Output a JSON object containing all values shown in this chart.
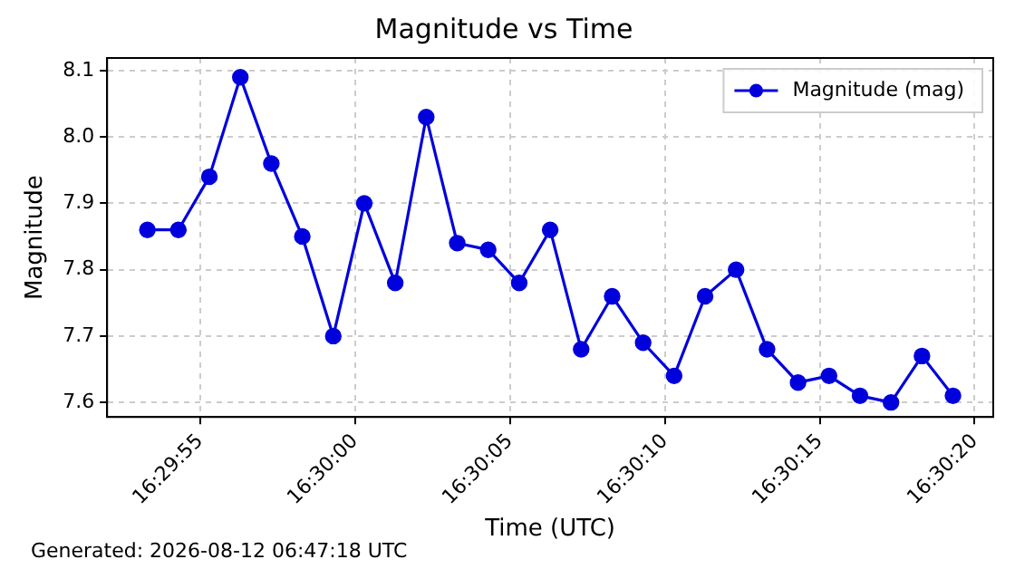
{
  "chart_data": {
    "type": "line",
    "title": "Magnitude vs Time",
    "xlabel": "Time (UTC)",
    "ylabel": "Magnitude",
    "annotations": [
      "Generated: 2026-08-12 06:47:18 UTC"
    ],
    "x": [
      "2026-08-12T16:29:53.3",
      "2026-08-12T16:29:54.3",
      "2026-08-12T16:29:55.3",
      "2026-08-12T16:29:56.3",
      "2026-08-12T16:29:57.3",
      "2026-08-12T16:29:58.3",
      "2026-08-12T16:29:59.3",
      "2026-08-12T16:30:00.3",
      "2026-08-12T16:30:01.3",
      "2026-08-12T16:30:02.3",
      "2026-08-12T16:30:03.3",
      "2026-08-12T16:30:04.3",
      "2026-08-12T16:30:05.3",
      "2026-08-12T16:30:06.3",
      "2026-08-12T16:30:07.3",
      "2026-08-12T16:30:08.3",
      "2026-08-12T16:30:09.3",
      "2026-08-12T16:30:10.3",
      "2026-08-12T16:30:11.3",
      "2026-08-12T16:30:12.3",
      "2026-08-12T16:30:13.3",
      "2026-08-12T16:30:14.3",
      "2026-08-12T16:30:15.3",
      "2026-08-12T16:30:16.3",
      "2026-08-12T16:30:17.3",
      "2026-08-12T16:30:18.3",
      "2026-08-12T16:30:19.3"
    ],
    "series": [
      {
        "name": "Magnitude (mag)",
        "color": "#0000dd",
        "values": [
          7.86,
          7.86,
          7.94,
          8.09,
          7.96,
          7.85,
          7.7,
          7.9,
          7.78,
          8.03,
          7.84,
          7.83,
          7.78,
          7.86,
          7.68,
          7.76,
          7.69,
          7.64,
          7.76,
          7.8,
          7.68,
          7.63,
          7.64,
          7.61,
          7.6,
          7.67,
          7.61
        ]
      }
    ],
    "xlim": [
      "2026-08-12T16:29:52.0",
      "2026-08-12T16:30:20.6"
    ],
    "xticks": [
      {
        "value": "2026-08-12T16:29:55",
        "label": "16:29:55"
      },
      {
        "value": "2026-08-12T16:30:00",
        "label": "16:30:00"
      },
      {
        "value": "2026-08-12T16:30:05",
        "label": "16:30:05"
      },
      {
        "value": "2026-08-12T16:30:10",
        "label": "16:30:10"
      },
      {
        "value": "2026-08-12T16:30:15",
        "label": "16:30:15"
      },
      {
        "value": "2026-08-12T16:30:20",
        "label": "16:30:20"
      }
    ],
    "ylim": [
      7.578,
      8.119
    ],
    "yticks": [
      7.6,
      7.7,
      7.8,
      7.9,
      {
        "value": 8.0,
        "label": "8.0"
      },
      8.1
    ],
    "grid": true,
    "legend": "top right",
    "marker": "circle",
    "line_style": "solid"
  }
}
